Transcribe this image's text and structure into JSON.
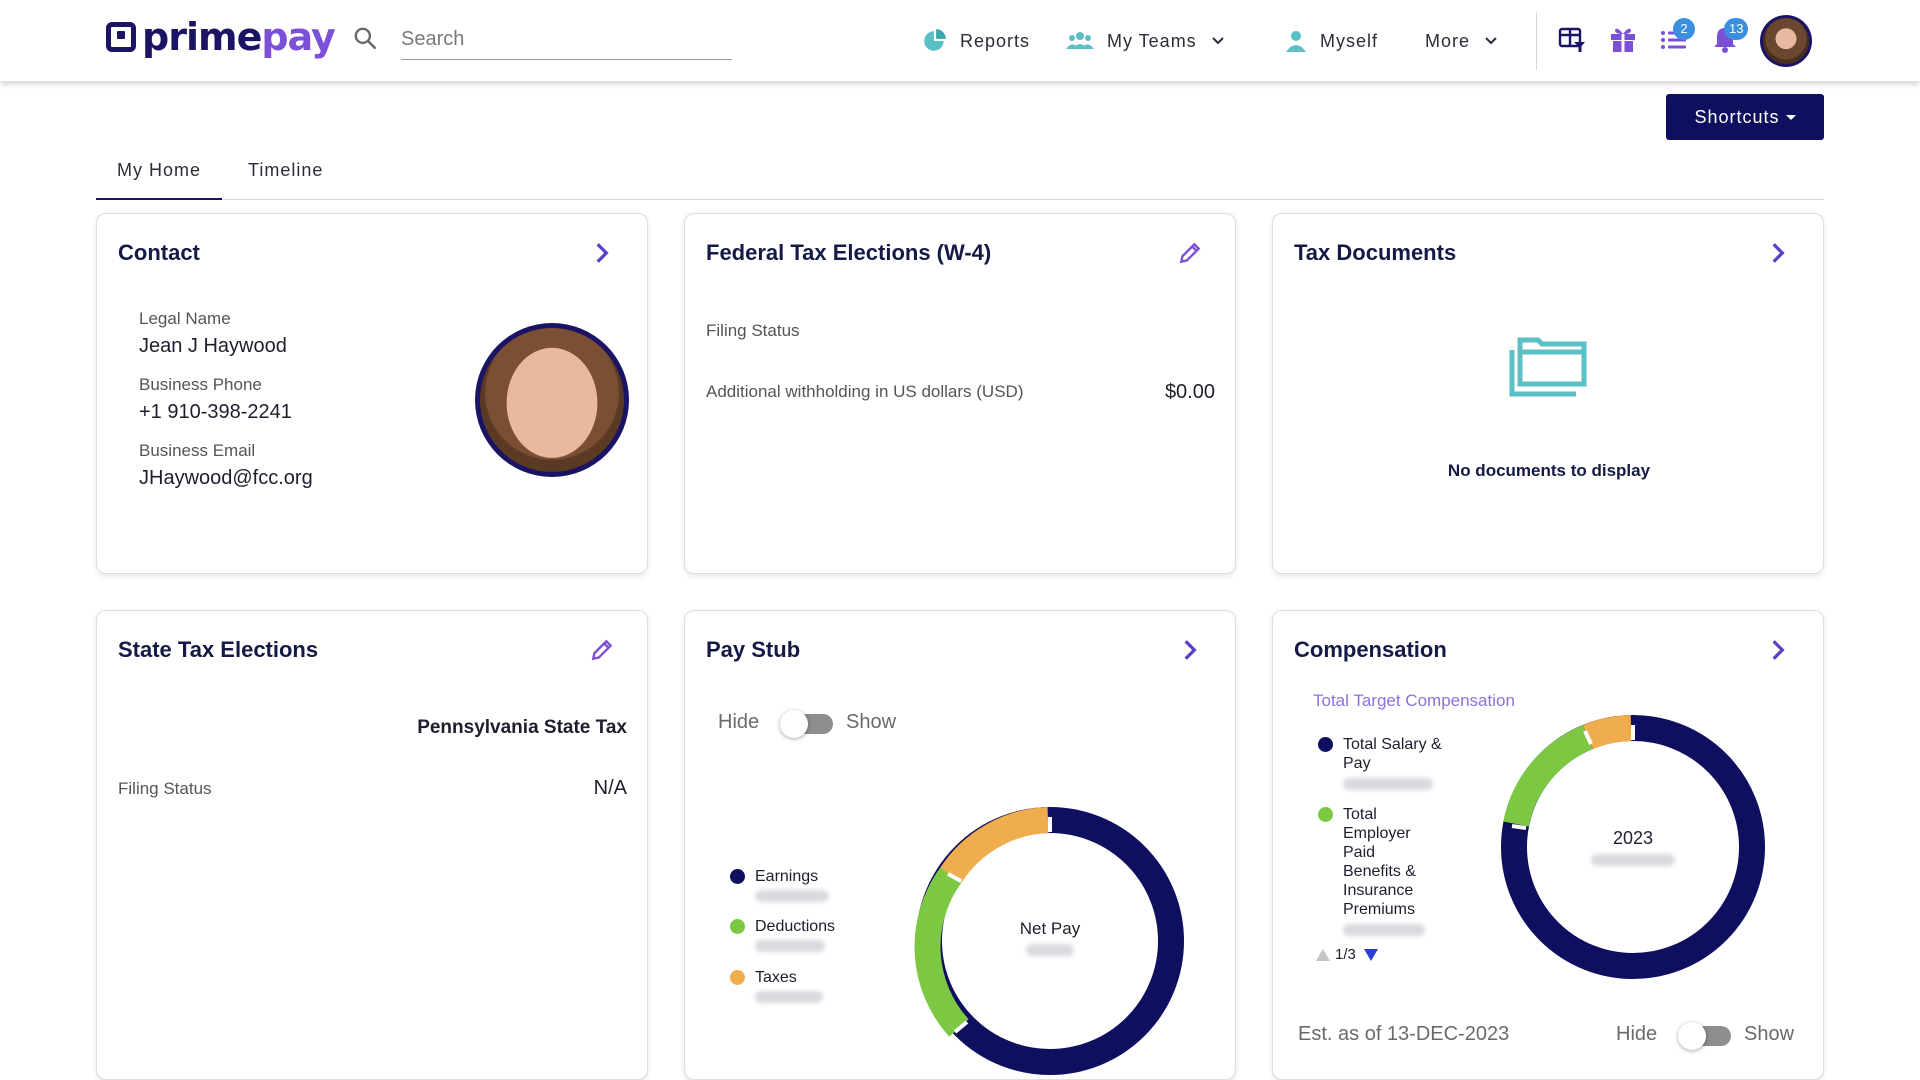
{
  "brand": {
    "prime": "prime",
    "pay": "pay"
  },
  "search": {
    "placeholder": "Search"
  },
  "nav": {
    "reports": "Reports",
    "my_teams": "My Teams",
    "myself": "Myself",
    "more": "More"
  },
  "badges": {
    "tasks": "2",
    "notifications": "13"
  },
  "shortcuts": "Shortcuts",
  "tabs": [
    "My Home",
    "Timeline"
  ],
  "contact": {
    "title": "Contact",
    "legal_name_label": "Legal Name",
    "legal_name": "Jean J Haywood",
    "phone_label": "Business Phone",
    "phone": "+1 910-398-2241",
    "email_label": "Business Email",
    "email": "JHaywood@fcc.org"
  },
  "federal": {
    "title": "Federal Tax Elections (W-4)",
    "filing_status_label": "Filing Status",
    "withholding_label": "Additional withholding in US dollars (USD)",
    "withholding_value": "$0.00"
  },
  "tax_docs": {
    "title": "Tax Documents",
    "empty": "No documents to display"
  },
  "state": {
    "title": "State Tax Elections",
    "state_name": "Pennsylvania State Tax",
    "filing_status_label": "Filing Status",
    "filing_status_value": "N/A"
  },
  "paystub": {
    "title": "Pay Stub",
    "hide": "Hide",
    "show": "Show",
    "legend": [
      "Earnings",
      "Deductions",
      "Taxes"
    ],
    "center_label": "Net Pay"
  },
  "compensation": {
    "title": "Compensation",
    "subtitle": "Total Target Compensation",
    "legend": [
      "Total Salary & Pay",
      "Total Employer Paid Benefits & Insurance Premiums"
    ],
    "pager": "1/3",
    "center_label": "2023",
    "est": "Est. as of 13-DEC-2023",
    "hide": "Hide",
    "show": "Show"
  },
  "colors": {
    "navy": "#0f0f5f",
    "green": "#7dc843",
    "orange": "#f0ad4e",
    "purple": "#7b4fd6",
    "teal": "#5bbfc6"
  }
}
